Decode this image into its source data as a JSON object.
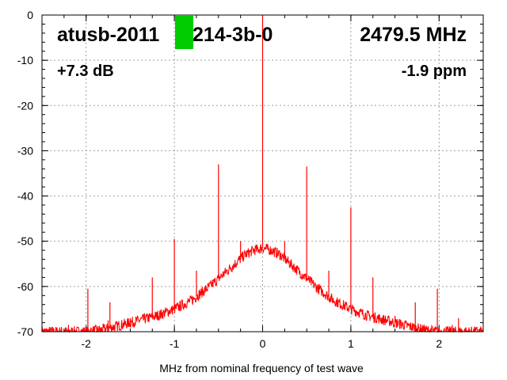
{
  "chart_data": {
    "type": "line",
    "title": "",
    "xlabel": "MHz from nominal frequency of test wave",
    "ylabel": "",
    "xlim": [
      -2.5,
      2.5
    ],
    "ylim": [
      -70,
      0
    ],
    "x_ticks": [
      -2,
      -1,
      0,
      1,
      2
    ],
    "y_ticks": [
      0,
      -10,
      -20,
      -30,
      -40,
      -50,
      -60,
      -70
    ],
    "grid": true,
    "series_color": "#ff0000",
    "annotations": {
      "device": "atusb-2011",
      "device_suffix": "214-3b-0",
      "frequency": "2479.5 MHz",
      "gain": "+7.3 dB",
      "offset": "-1.9 ppm"
    },
    "marker_color": "#00cc00",
    "noise_floor": {
      "x": [
        -2.5,
        -2.2,
        -2.0,
        -1.8,
        -1.5,
        -1.2,
        -1.0,
        -0.8,
        -0.6,
        -0.4,
        -0.2,
        -0.1,
        0.0,
        0.1,
        0.2,
        0.4,
        0.6,
        0.8,
        1.0,
        1.2,
        1.5,
        1.8,
        2.0,
        2.2,
        2.5
      ],
      "y": [
        -70,
        -70,
        -70,
        -69.5,
        -68,
        -66.5,
        -65,
        -63,
        -60,
        -56.5,
        -53,
        -52,
        -51.5,
        -52,
        -53,
        -56.5,
        -60,
        -63,
        -65,
        -66.5,
        -68,
        -69.5,
        -70,
        -70,
        -70
      ]
    },
    "spurs": [
      {
        "x": -2.2,
        "y": -68.5
      },
      {
        "x": -1.98,
        "y": -60.5
      },
      {
        "x": -1.75,
        "y": -67.5
      },
      {
        "x": -1.73,
        "y": -63.5
      },
      {
        "x": -1.5,
        "y": -67
      },
      {
        "x": -1.25,
        "y": -58
      },
      {
        "x": -1.0,
        "y": -49.5
      },
      {
        "x": -0.75,
        "y": -56.5
      },
      {
        "x": -0.5,
        "y": -33
      },
      {
        "x": -0.25,
        "y": -50
      },
      {
        "x": 0.0,
        "y": 0
      },
      {
        "x": 0.25,
        "y": -50
      },
      {
        "x": 0.5,
        "y": -33.5
      },
      {
        "x": 0.75,
        "y": -56.5
      },
      {
        "x": 1.0,
        "y": -42.5
      },
      {
        "x": 1.25,
        "y": -58
      },
      {
        "x": 1.5,
        "y": -66.5
      },
      {
        "x": 1.73,
        "y": -63.5
      },
      {
        "x": 1.98,
        "y": -60.5
      },
      {
        "x": 2.15,
        "y": -68.5
      },
      {
        "x": 2.22,
        "y": -67
      }
    ]
  }
}
